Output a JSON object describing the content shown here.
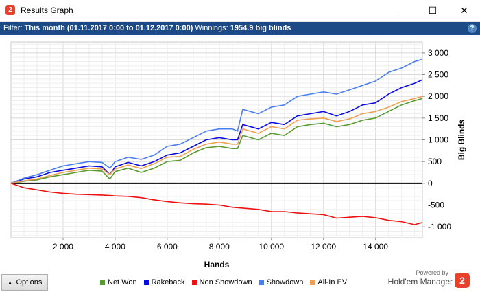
{
  "window": {
    "title": "Results Graph",
    "app_icon_glyph": "2",
    "minimize_glyph": "—",
    "maximize_glyph": "☐",
    "close_glyph": "✕"
  },
  "filter": {
    "filter_label": "Filter:",
    "filter_value": "This month (01.11.2017 0:00 to 01.12.2017 0:00)",
    "winnings_label": "Winnings:",
    "winnings_value": "1954.9 big blinds",
    "help_glyph": "?"
  },
  "bottom": {
    "options_label": "Options",
    "options_arrow": "▲",
    "powered_by": "Powered by",
    "brand_name": "Hold'em Manager",
    "brand_logo_glyph": "2"
  },
  "colors": {
    "net_won": "#5a9a2f",
    "rakeback": "#0a0ae6",
    "non_showdown": "#f01010",
    "showdown": "#4a7ef0",
    "allin_ev": "#f0a050",
    "filterbar_bg": "#1c4a87"
  },
  "chart_data": {
    "type": "line",
    "xlabel": "Hands",
    "ylabel": "Big Blinds",
    "xlim": [
      0,
      15800
    ],
    "ylim": [
      -1250,
      3250
    ],
    "x_ticks": [
      2000,
      4000,
      6000,
      8000,
      10000,
      12000,
      14000
    ],
    "x_tick_labels": [
      "2 000",
      "4 000",
      "6 000",
      "8 000",
      "10 000",
      "12 000",
      "14 000"
    ],
    "y_ticks": [
      -1000,
      -500,
      0,
      500,
      1000,
      1500,
      2000,
      2500,
      3000
    ],
    "y_tick_labels": [
      "-1 000",
      "-500",
      "0",
      "500",
      "1 000",
      "1 500",
      "2 000",
      "2 500",
      "3 000"
    ],
    "grid": true,
    "legend_position": "bottom",
    "x": [
      0,
      500,
      1000,
      1500,
      2000,
      2500,
      3000,
      3500,
      3800,
      4000,
      4500,
      5000,
      5500,
      6000,
      6500,
      7000,
      7500,
      8000,
      8500,
      8700,
      8900,
      9500,
      10000,
      10500,
      11000,
      11500,
      12000,
      12500,
      13000,
      13500,
      14000,
      14500,
      15000,
      15500,
      15800
    ],
    "series": [
      {
        "name": "Net Won",
        "color": "#5a9a2f",
        "values": [
          0,
          50,
          80,
          150,
          200,
          250,
          300,
          280,
          100,
          270,
          350,
          250,
          350,
          500,
          530,
          700,
          820,
          850,
          800,
          800,
          1100,
          1000,
          1150,
          1100,
          1300,
          1350,
          1380,
          1300,
          1350,
          1450,
          1500,
          1650,
          1800,
          1900,
          1950
        ]
      },
      {
        "name": "Rakeback",
        "color": "#0a0ae6",
        "values": [
          0,
          100,
          150,
          250,
          300,
          350,
          400,
          380,
          200,
          380,
          480,
          400,
          500,
          650,
          700,
          850,
          1000,
          1050,
          1000,
          1000,
          1350,
          1250,
          1400,
          1350,
          1550,
          1600,
          1650,
          1550,
          1650,
          1800,
          1850,
          2050,
          2200,
          2300,
          2380
        ]
      },
      {
        "name": "Non Showdown",
        "color": "#f01010",
        "values": [
          0,
          -100,
          -150,
          -200,
          -230,
          -250,
          -260,
          -270,
          -280,
          -290,
          -300,
          -330,
          -380,
          -420,
          -450,
          -470,
          -480,
          -500,
          -550,
          -560,
          -570,
          -600,
          -650,
          -650,
          -680,
          -700,
          -720,
          -800,
          -780,
          -760,
          -790,
          -850,
          -880,
          -950,
          -900
        ]
      },
      {
        "name": "Showdown",
        "color": "#4a7ef0",
        "values": [
          0,
          120,
          200,
          300,
          400,
          450,
          500,
          480,
          350,
          500,
          600,
          550,
          650,
          850,
          900,
          1050,
          1200,
          1250,
          1250,
          1200,
          1700,
          1600,
          1750,
          1800,
          2000,
          2050,
          2100,
          2050,
          2150,
          2250,
          2350,
          2550,
          2650,
          2800,
          2850
        ]
      },
      {
        "name": "All-In EV",
        "color": "#f0a050",
        "values": [
          0,
          60,
          100,
          180,
          250,
          300,
          350,
          330,
          200,
          330,
          420,
          340,
          450,
          600,
          620,
          780,
          900,
          950,
          900,
          900,
          1250,
          1150,
          1300,
          1250,
          1450,
          1480,
          1500,
          1420,
          1480,
          1600,
          1650,
          1750,
          1880,
          1950,
          2000
        ]
      }
    ]
  }
}
